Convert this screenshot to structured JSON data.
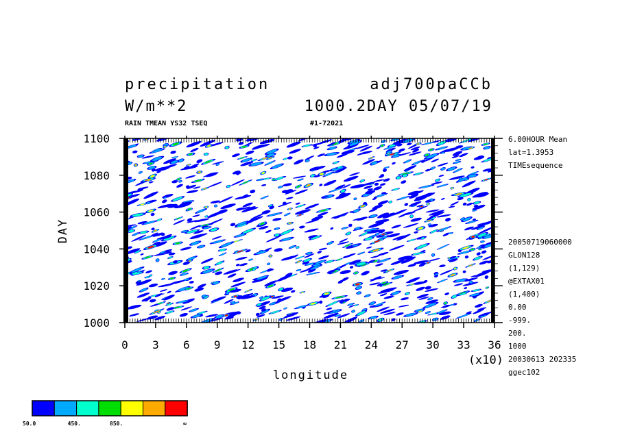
{
  "header": {
    "title_left": "precipitation",
    "title_right": "adj700paCCb",
    "units": "W/m**2",
    "time_info": "1000.2DAY 05/07/19",
    "sub_left": "RAIN TMEAN YS32 TSEQ",
    "sub_right": "#1-72021"
  },
  "side_info": {
    "top": [
      "6.00HOUR Mean",
      "lat=1.3953",
      "TIMEsequence"
    ],
    "bottom": [
      "20050719060000",
      "GLON128",
      "(1,129)",
      "@EXTAX01",
      "(1,400)",
      "0.00",
      "-999.",
      "200.",
      "1000",
      "20030613 202335",
      "ggec102"
    ]
  },
  "chart_data": {
    "type": "heatmap",
    "title": "precipitation",
    "xlabel": "longitude",
    "ylabel": "DAY",
    "x_scale_note": "(x10)",
    "xlim": [
      0,
      36
    ],
    "ylim": [
      1000,
      1100
    ],
    "x_ticks": [
      "0",
      "3",
      "6",
      "9",
      "12",
      "15",
      "18",
      "21",
      "24",
      "27",
      "30",
      "33",
      "36"
    ],
    "y_ticks": [
      "1000",
      "1020",
      "1040",
      "1060",
      "1080",
      "1100"
    ],
    "color_levels": [
      50,
      250,
      450,
      650,
      850,
      1050,
      1250
    ],
    "color_scale": [
      "#0000ff",
      "#00aaff",
      "#00ffcc",
      "#00dd00",
      "#ffff00",
      "#ffaa00",
      "#ff0000"
    ],
    "colorbar_labels": [
      "50.0",
      "450.",
      "850.",
      "∞"
    ]
  }
}
